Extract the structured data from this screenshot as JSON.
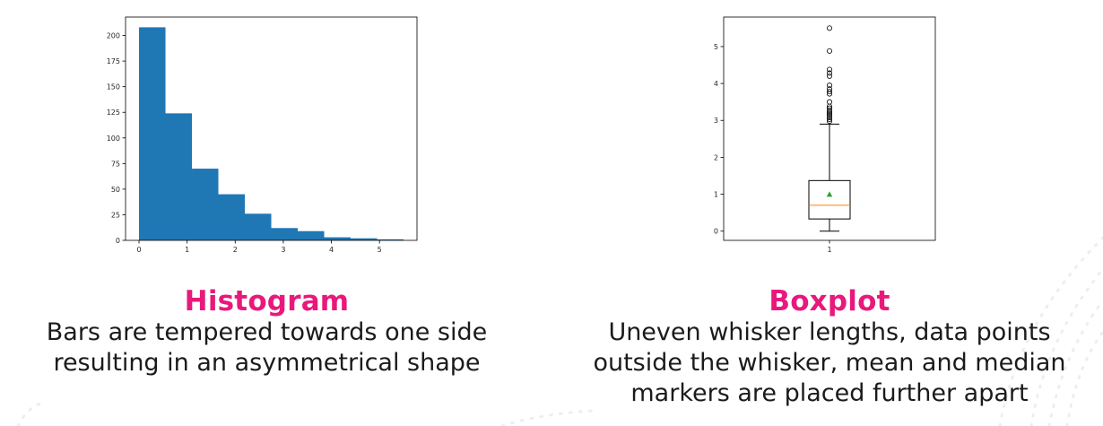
{
  "chart_data": [
    {
      "type": "bar",
      "title": "",
      "xlabel": "",
      "ylabel": "",
      "bins": [
        {
          "x0": 0.0,
          "x1": 0.55,
          "value": 208
        },
        {
          "x0": 0.55,
          "x1": 1.1,
          "value": 124
        },
        {
          "x0": 1.1,
          "x1": 1.65,
          "value": 70
        },
        {
          "x0": 1.65,
          "x1": 2.2,
          "value": 45
        },
        {
          "x0": 2.2,
          "x1": 2.75,
          "value": 26
        },
        {
          "x0": 2.75,
          "x1": 3.3,
          "value": 12
        },
        {
          "x0": 3.3,
          "x1": 3.85,
          "value": 9
        },
        {
          "x0": 3.85,
          "x1": 4.4,
          "value": 3
        },
        {
          "x0": 4.4,
          "x1": 4.95,
          "value": 2
        },
        {
          "x0": 4.95,
          "x1": 5.5,
          "value": 1
        }
      ],
      "xlim": [
        -0.28,
        5.78
      ],
      "ylim": [
        0,
        218
      ],
      "xticks": [
        "0",
        "1",
        "2",
        "3",
        "4",
        "5"
      ],
      "yticks": [
        "0",
        "25",
        "50",
        "75",
        "100",
        "125",
        "150",
        "175",
        "200"
      ],
      "bar_color": "#1f77b4",
      "grid": false
    },
    {
      "type": "box",
      "title": "",
      "xlabel": "",
      "ylabel": "",
      "categories": [
        "1"
      ],
      "box": {
        "whisker_low": 0.0,
        "q1": 0.33,
        "median": 0.7,
        "mean": 1.0,
        "q3": 1.37,
        "whisker_high": 2.9,
        "outliers": [
          2.98,
          3.03,
          3.08,
          3.13,
          3.18,
          3.22,
          3.27,
          3.33,
          3.38,
          3.5,
          3.72,
          3.78,
          3.85,
          3.95,
          4.2,
          4.28,
          4.38,
          4.88,
          5.5
        ]
      },
      "ylim": [
        -0.25,
        5.8
      ],
      "yticks": [
        "0",
        "1",
        "2",
        "3",
        "4",
        "5"
      ],
      "median_color": "#ff7f0e",
      "mean_marker_color": "#2ca02c",
      "grid": false
    }
  ],
  "captions": {
    "histogram": {
      "title": "Histogram",
      "lines": [
        "Bars are tempered towards one side",
        "resulting in an asymmetrical shape"
      ]
    },
    "boxplot": {
      "title": "Boxplot",
      "lines": [
        "Uneven whisker lengths, data points",
        "outside the whisker, mean and median",
        "markers are placed further apart"
      ]
    }
  },
  "colors": {
    "accent": "#e8197b",
    "text": "#1b1b1b"
  }
}
